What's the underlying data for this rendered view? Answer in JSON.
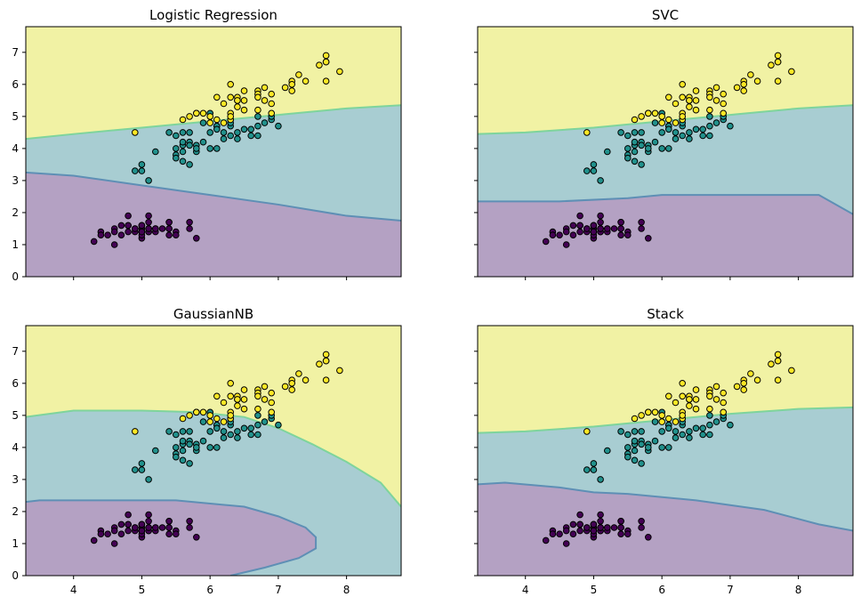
{
  "colors": {
    "region_class0": "#b4a1c3",
    "region_class1": "#a8cdd2",
    "region_class2": "#f1f2a4",
    "point_class0": "#440154",
    "point_class1": "#21918c",
    "point_class2": "#fde725",
    "boundary_low": "#5e8fb5",
    "boundary_high": "#7ed49c"
  },
  "chart_data": [
    {
      "type": "scatter",
      "title": "Logistic Regression",
      "xlim": [
        3.3,
        8.8
      ],
      "ylim": [
        0,
        7.8
      ],
      "xticks": [
        4,
        5,
        6,
        7,
        8
      ],
      "yticks": [
        0,
        1,
        2,
        3,
        4,
        5,
        6,
        7
      ],
      "show_xtick_labels": false,
      "show_ytick_labels": true,
      "boundary_0_1": [
        [
          3.3,
          3.25
        ],
        [
          4.0,
          3.15
        ],
        [
          5.0,
          2.85
        ],
        [
          6.0,
          2.55
        ],
        [
          7.0,
          2.25
        ],
        [
          8.0,
          1.9
        ],
        [
          8.8,
          1.75
        ]
      ],
      "boundary_1_2": [
        [
          3.3,
          4.3
        ],
        [
          4.0,
          4.45
        ],
        [
          5.0,
          4.65
        ],
        [
          6.0,
          4.85
        ],
        [
          7.0,
          5.05
        ],
        [
          8.0,
          5.25
        ],
        [
          8.8,
          5.35
        ]
      ],
      "boundary_right": null
    },
    {
      "type": "scatter",
      "title": "SVC",
      "xlim": [
        3.3,
        8.8
      ],
      "ylim": [
        0,
        7.8
      ],
      "xticks": [
        4,
        5,
        6,
        7,
        8
      ],
      "yticks": [
        0,
        1,
        2,
        3,
        4,
        5,
        6,
        7
      ],
      "show_xtick_labels": false,
      "show_ytick_labels": false,
      "boundary_0_1": [
        [
          3.3,
          2.35
        ],
        [
          4.5,
          2.35
        ],
        [
          5.5,
          2.45
        ],
        [
          6.0,
          2.55
        ],
        [
          8.3,
          2.55
        ],
        [
          8.8,
          1.95
        ]
      ],
      "boundary_1_2": [
        [
          3.3,
          4.45
        ],
        [
          4.0,
          4.5
        ],
        [
          5.0,
          4.65
        ],
        [
          6.0,
          4.85
        ],
        [
          7.0,
          5.05
        ],
        [
          8.0,
          5.25
        ],
        [
          8.8,
          5.35
        ]
      ],
      "boundary_right": null
    },
    {
      "type": "scatter",
      "title": "GaussianNB",
      "xlim": [
        3.3,
        8.8
      ],
      "ylim": [
        0,
        7.8
      ],
      "xticks": [
        4,
        5,
        6,
        7,
        8
      ],
      "yticks": [
        0,
        1,
        2,
        3,
        4,
        5,
        6,
        7
      ],
      "show_xtick_labels": true,
      "show_ytick_labels": true,
      "boundary_0_1": [
        [
          3.3,
          2.3
        ],
        [
          3.5,
          2.35
        ],
        [
          5.5,
          2.35
        ],
        [
          6.5,
          2.15
        ],
        [
          7.0,
          1.85
        ],
        [
          7.4,
          1.5
        ],
        [
          7.55,
          1.2
        ],
        [
          7.55,
          0.85
        ],
        [
          7.3,
          0.55
        ],
        [
          6.8,
          0.25
        ],
        [
          6.3,
          0.0
        ]
      ],
      "boundary_1_2": [
        [
          3.3,
          4.95
        ],
        [
          4.0,
          5.15
        ],
        [
          5.0,
          5.15
        ],
        [
          5.8,
          5.1
        ],
        [
          6.5,
          4.95
        ],
        [
          7.0,
          4.6
        ],
        [
          7.5,
          4.1
        ],
        [
          8.0,
          3.55
        ],
        [
          8.5,
          2.9
        ],
        [
          8.8,
          2.15
        ]
      ],
      "boundary_right": null
    },
    {
      "type": "scatter",
      "title": "Stack",
      "xlim": [
        3.3,
        8.8
      ],
      "ylim": [
        0,
        7.8
      ],
      "xticks": [
        4,
        5,
        6,
        7,
        8
      ],
      "yticks": [
        0,
        1,
        2,
        3,
        4,
        5,
        6,
        7
      ],
      "show_xtick_labels": true,
      "show_ytick_labels": false,
      "boundary_0_1": [
        [
          3.3,
          2.85
        ],
        [
          3.7,
          2.9
        ],
        [
          4.5,
          2.75
        ],
        [
          5.0,
          2.6
        ],
        [
          5.5,
          2.55
        ],
        [
          6.5,
          2.35
        ],
        [
          7.5,
          2.05
        ],
        [
          8.3,
          1.6
        ],
        [
          8.8,
          1.4
        ]
      ],
      "boundary_1_2": [
        [
          3.3,
          4.45
        ],
        [
          4.0,
          4.5
        ],
        [
          5.0,
          4.65
        ],
        [
          6.0,
          4.85
        ],
        [
          7.0,
          5.05
        ],
        [
          8.0,
          5.2
        ],
        [
          8.8,
          5.25
        ]
      ],
      "boundary_right": null
    }
  ],
  "points": {
    "class0": [
      [
        5.1,
        1.4
      ],
      [
        4.9,
        1.4
      ],
      [
        4.7,
        1.3
      ],
      [
        4.6,
        1.5
      ],
      [
        5.0,
        1.4
      ],
      [
        5.4,
        1.7
      ],
      [
        4.6,
        1.4
      ],
      [
        5.0,
        1.5
      ],
      [
        4.4,
        1.4
      ],
      [
        4.9,
        1.5
      ],
      [
        5.4,
        1.5
      ],
      [
        4.8,
        1.6
      ],
      [
        4.8,
        1.4
      ],
      [
        4.3,
        1.1
      ],
      [
        5.8,
        1.2
      ],
      [
        5.7,
        1.5
      ],
      [
        5.4,
        1.3
      ],
      [
        5.1,
        1.4
      ],
      [
        5.7,
        1.7
      ],
      [
        5.1,
        1.5
      ],
      [
        5.4,
        1.7
      ],
      [
        5.1,
        1.5
      ],
      [
        4.6,
        1.0
      ],
      [
        5.1,
        1.7
      ],
      [
        4.8,
        1.9
      ],
      [
        5.0,
        1.6
      ],
      [
        5.0,
        1.6
      ],
      [
        5.2,
        1.5
      ],
      [
        5.2,
        1.4
      ],
      [
        4.7,
        1.6
      ],
      [
        4.8,
        1.6
      ],
      [
        5.4,
        1.5
      ],
      [
        5.2,
        1.5
      ],
      [
        5.5,
        1.4
      ],
      [
        4.9,
        1.5
      ],
      [
        5.0,
        1.2
      ],
      [
        5.5,
        1.3
      ],
      [
        4.4,
        1.3
      ],
      [
        5.1,
        1.5
      ],
      [
        5.0,
        1.3
      ],
      [
        4.5,
        1.3
      ],
      [
        5.0,
        1.6
      ],
      [
        5.1,
        1.9
      ],
      [
        5.3,
        1.5
      ],
      [
        5.0,
        1.4
      ]
    ],
    "class1": [
      [
        7.0,
        4.7
      ],
      [
        6.4,
        4.5
      ],
      [
        6.9,
        4.9
      ],
      [
        5.5,
        4.0
      ],
      [
        6.5,
        4.6
      ],
      [
        5.7,
        4.5
      ],
      [
        6.3,
        4.7
      ],
      [
        4.9,
        3.3
      ],
      [
        6.6,
        4.6
      ],
      [
        5.2,
        3.9
      ],
      [
        5.0,
        3.5
      ],
      [
        5.9,
        4.2
      ],
      [
        6.0,
        4.0
      ],
      [
        6.1,
        4.7
      ],
      [
        5.6,
        3.6
      ],
      [
        6.7,
        4.4
      ],
      [
        5.6,
        4.5
      ],
      [
        5.8,
        4.1
      ],
      [
        6.2,
        4.5
      ],
      [
        5.6,
        3.9
      ],
      [
        5.9,
        4.8
      ],
      [
        6.1,
        4.0
      ],
      [
        6.3,
        4.9
      ],
      [
        6.1,
        4.7
      ],
      [
        6.4,
        4.3
      ],
      [
        6.6,
        4.4
      ],
      [
        6.8,
        4.8
      ],
      [
        6.7,
        5.0
      ],
      [
        6.0,
        4.5
      ],
      [
        5.7,
        3.5
      ],
      [
        5.5,
        3.8
      ],
      [
        5.5,
        3.7
      ],
      [
        5.8,
        3.9
      ],
      [
        6.0,
        5.1
      ],
      [
        5.4,
        4.5
      ],
      [
        6.7,
        4.7
      ],
      [
        6.3,
        4.4
      ],
      [
        5.6,
        4.1
      ],
      [
        5.5,
        4.4
      ],
      [
        6.1,
        4.6
      ],
      [
        5.8,
        4.0
      ],
      [
        5.0,
        3.3
      ],
      [
        5.6,
        4.2
      ],
      [
        5.7,
        4.2
      ],
      [
        6.2,
        4.3
      ],
      [
        5.1,
        3.0
      ],
      [
        5.7,
        4.1
      ],
      [
        6.9,
        5.0
      ],
      [
        6.3,
        4.8
      ]
    ],
    "class2": [
      [
        6.3,
        6.0
      ],
      [
        5.8,
        5.1
      ],
      [
        7.1,
        5.9
      ],
      [
        6.5,
        5.8
      ],
      [
        7.6,
        6.6
      ],
      [
        4.9,
        4.5
      ],
      [
        7.3,
        6.3
      ],
      [
        6.7,
        5.8
      ],
      [
        7.2,
        6.1
      ],
      [
        6.4,
        5.3
      ],
      [
        6.8,
        5.5
      ],
      [
        5.7,
        5.0
      ],
      [
        6.4,
        5.5
      ],
      [
        7.7,
        6.7
      ],
      [
        7.7,
        6.9
      ],
      [
        6.0,
        5.0
      ],
      [
        6.9,
        5.7
      ],
      [
        5.6,
        4.9
      ],
      [
        7.7,
        6.7
      ],
      [
        6.3,
        4.9
      ],
      [
        6.7,
        5.7
      ],
      [
        7.2,
        6.0
      ],
      [
        6.2,
        4.8
      ],
      [
        6.1,
        4.9
      ],
      [
        6.4,
        5.6
      ],
      [
        7.2,
        5.8
      ],
      [
        7.4,
        6.1
      ],
      [
        7.9,
        6.4
      ],
      [
        6.3,
        5.1
      ],
      [
        6.1,
        5.6
      ],
      [
        7.7,
        6.1
      ],
      [
        6.3,
        5.6
      ],
      [
        6.4,
        5.5
      ],
      [
        6.0,
        4.8
      ],
      [
        6.9,
        5.4
      ],
      [
        6.7,
        5.6
      ],
      [
        6.9,
        5.1
      ],
      [
        6.8,
        5.9
      ],
      [
        6.7,
        5.2
      ],
      [
        6.5,
        5.2
      ],
      [
        5.9,
        5.1
      ],
      [
        6.5,
        5.5
      ],
      [
        6.2,
        5.4
      ],
      [
        6.3,
        5.0
      ],
      [
        5.8,
        5.1
      ]
    ]
  }
}
